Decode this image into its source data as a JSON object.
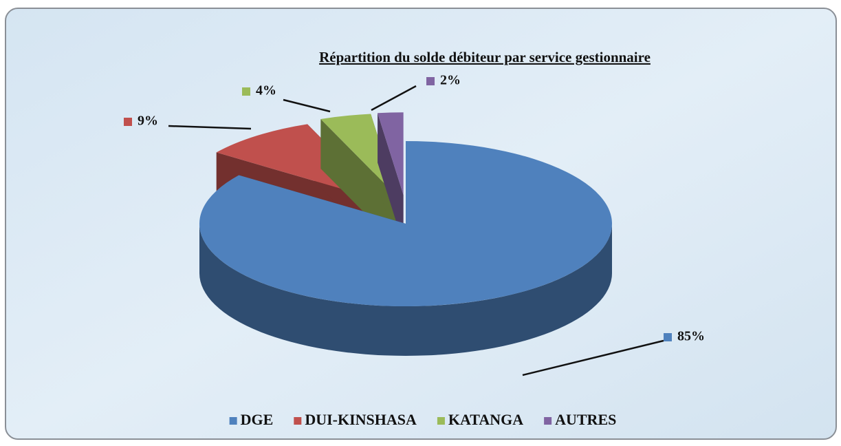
{
  "chart_data": {
    "type": "pie",
    "title": "Répartition du solde débiteur par service gestionnaire",
    "categories": [
      "DGE",
      "DUI-KINSHASA",
      "KATANGA",
      "AUTRES"
    ],
    "values": [
      85,
      9,
      4,
      2
    ],
    "value_labels": [
      "85%",
      "9%",
      "4%",
      "2%"
    ],
    "colors": [
      "#4f81bd",
      "#c0504d",
      "#9bbb59",
      "#8064a2"
    ],
    "legend": "bottom"
  }
}
